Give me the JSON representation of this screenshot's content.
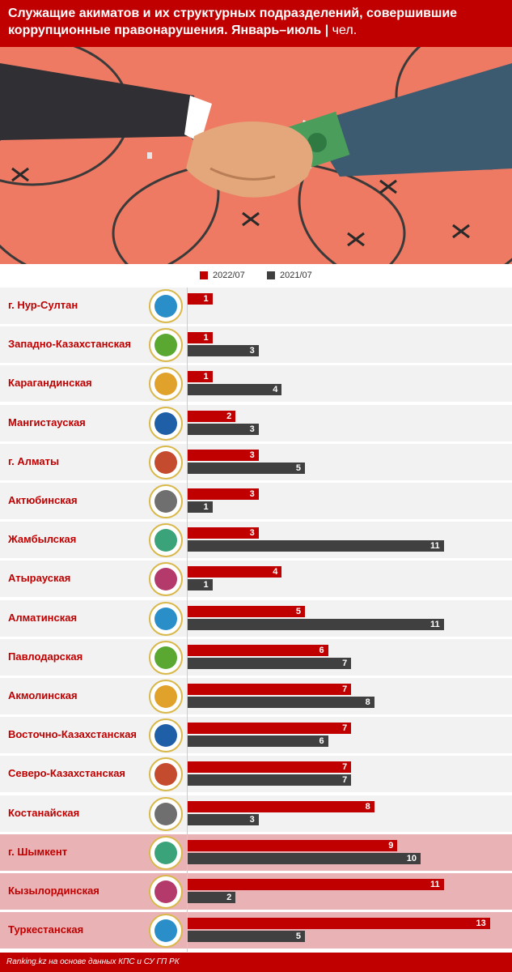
{
  "header": {
    "title": "Служащие акиматов и их структурных подразделений, совершившие коррупционные правонарушения. Январь–июль",
    "separator": "|",
    "unit": "чел."
  },
  "legend": {
    "series_2022": "2022/07",
    "series_2021": "2021/07"
  },
  "colors": {
    "series_2022": "#c00000",
    "series_2021": "#404040",
    "highlight_row": "#e9b3b5",
    "row_bg": "#f2f2f2"
  },
  "chart_data": {
    "type": "bar",
    "orientation": "horizontal",
    "categories": [
      "г. Нур-Султан",
      "Западно-Казахстанская",
      "Карагандинская",
      "Мангистауская",
      "г. Алматы",
      "Актюбинская",
      "Жамбылская",
      "Атырауская",
      "Алматинская",
      "Павлодарская",
      "Акмолинская",
      "Восточно-Казахстанская",
      "Северо-Казахстанская",
      "Костанайская",
      "г. Шымкент",
      "Кызылординская",
      "Туркестанская"
    ],
    "series": [
      {
        "name": "2022/07",
        "values": [
          1,
          1,
          1,
          2,
          3,
          3,
          3,
          4,
          5,
          6,
          7,
          7,
          7,
          8,
          9,
          11,
          13
        ]
      },
      {
        "name": "2021/07",
        "values": [
          null,
          3,
          4,
          3,
          5,
          1,
          11,
          1,
          11,
          7,
          8,
          6,
          7,
          3,
          10,
          2,
          5
        ]
      }
    ],
    "highlighted": [
      "г. Шымкент",
      "Кызылординская",
      "Туркестанская"
    ],
    "xlim": [
      0,
      13
    ]
  },
  "footer": {
    "source": "Ranking.kz на основе данных КПС и СУ ГП РК"
  }
}
